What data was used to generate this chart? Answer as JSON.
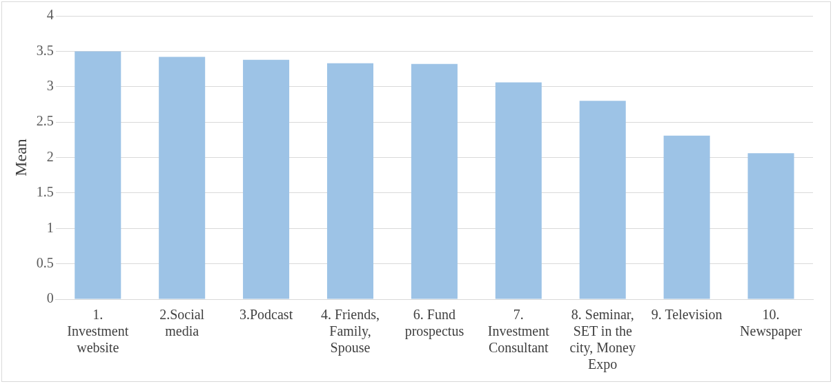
{
  "chart_data": {
    "type": "bar",
    "ylabel": "Mean",
    "categories": [
      "1. Investment website",
      "2.Social media",
      "3.Podcast",
      "4. Friends, Family, Spouse",
      "6. Fund prospectus",
      "7. Investment Consultant",
      "8. Seminar, SET in the city, Money Expo",
      "9. Television",
      "10. Newspaper"
    ],
    "values": [
      3.5,
      3.42,
      3.38,
      3.33,
      3.32,
      3.06,
      2.8,
      2.31,
      2.06
    ],
    "color": "#9dc3e6",
    "ylim": [
      0,
      4
    ],
    "yticks": [
      0,
      0.5,
      1,
      1.5,
      2,
      2.5,
      3,
      3.5,
      4
    ],
    "grid": "y"
  }
}
